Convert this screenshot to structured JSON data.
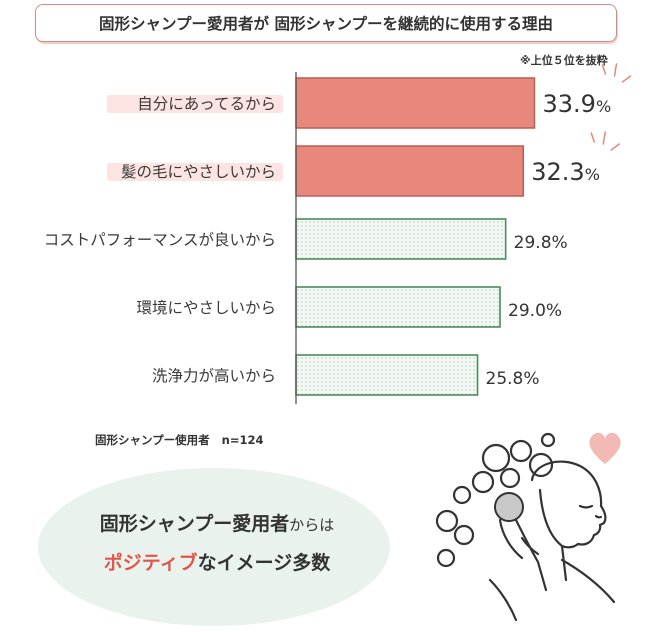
{
  "header": {
    "title": "固形シャンプー愛用者が 固形シャンプーを継続的に使用する理由",
    "note": "※上位５位を抜粋"
  },
  "footer": {
    "sample_label": "固形シャンプー使用者",
    "sample_n": "n=124"
  },
  "callout": {
    "line1_strong": "固形シャンプー愛用者",
    "line1_rest": "からは",
    "line2_accent": "ポジティブ",
    "line2_rest": "なイメージ多数"
  },
  "colors": {
    "highlight_bar": "#e8877c",
    "regular_bar_fill": "#f3f8f4",
    "regular_bar_border": "#4f8a60",
    "label_highlight": "#fbe4e1",
    "accent_text": "#e0564c",
    "callout_bg": "#e9f2ec",
    "heart": "#f3b9b4"
  },
  "chart_data": {
    "type": "bar",
    "orientation": "horizontal",
    "categories": [
      "自分にあってるから",
      "髪の毛にやさしいから",
      "コストパフォーマンスが良いから",
      "環境にやさしいから",
      "洗浄力が高いから"
    ],
    "values": [
      33.9,
      32.3,
      29.8,
      29.0,
      25.8
    ],
    "value_labels": [
      "33.9",
      "32.3",
      "29.8",
      "29.0",
      "25.8"
    ],
    "unit": "%",
    "highlighted": [
      true,
      true,
      false,
      false,
      false
    ],
    "xlim": [
      0,
      43
    ],
    "grid": false
  }
}
